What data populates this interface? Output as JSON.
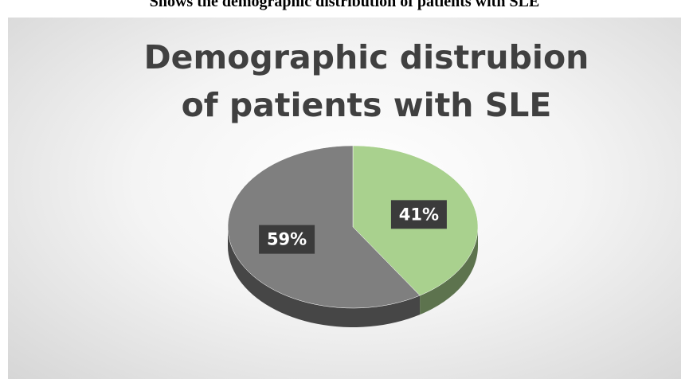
{
  "caption": "Shows the demographic distribution of patients with SLE",
  "chart_data": {
    "type": "pie",
    "title": "Demographic distrubion of patients with SLE",
    "values": [
      41,
      59
    ],
    "value_labels": [
      "41%",
      "59%"
    ],
    "colors": [
      "#a9d18e",
      "#7f7f7f"
    ]
  }
}
